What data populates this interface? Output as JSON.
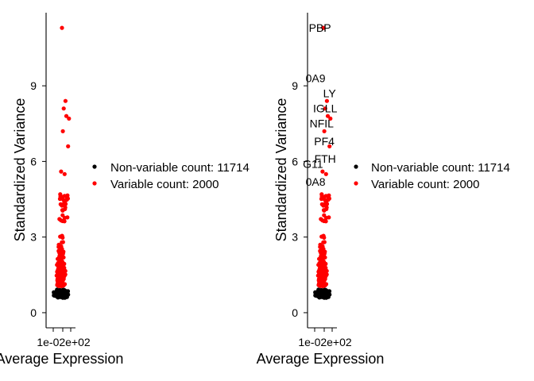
{
  "colors": {
    "non_variable": "#000000",
    "variable": "#ff0000"
  },
  "chart_data": [
    {
      "type": "scatter",
      "xlabel": "Average Expression",
      "ylabel": "Standardized Variance",
      "xtick_label": "1e-02e+02",
      "y_ticks": [
        0,
        3,
        6,
        9
      ],
      "ylim": [
        -0.6,
        11.9
      ],
      "legend": [
        {
          "name": "Non-variable count: 11714",
          "color": "#000000"
        },
        {
          "name": "Variable count: 2000",
          "color": "#ff0000"
        }
      ],
      "highlight_points": [
        {
          "x": 0.5,
          "y": 11.3
        },
        {
          "x": 0.7,
          "y": 8.4
        },
        {
          "x": 0.6,
          "y": 8.1
        },
        {
          "x": 0.75,
          "y": 7.8
        },
        {
          "x": 0.9,
          "y": 7.7
        },
        {
          "x": 0.55,
          "y": 7.2
        },
        {
          "x": 0.85,
          "y": 6.6
        },
        {
          "x": 0.45,
          "y": 5.6
        },
        {
          "x": 0.65,
          "y": 5.5
        },
        {
          "x": 0.4,
          "y": 4.7
        }
      ],
      "labels": []
    },
    {
      "type": "scatter",
      "xlabel": "Average Expression",
      "ylabel": "Standardized Variance",
      "xtick_label": "1e-02e+02",
      "y_ticks": [
        0,
        3,
        6,
        9
      ],
      "ylim": [
        -0.6,
        11.9
      ],
      "legend": [
        {
          "name": "Non-variable count: 11714",
          "color": "#000000"
        },
        {
          "name": "Variable count: 2000",
          "color": "#ff0000"
        }
      ],
      "highlight_points": [
        {
          "x": 0.5,
          "y": 11.3
        },
        {
          "x": 0.7,
          "y": 8.4
        },
        {
          "x": 0.6,
          "y": 8.1
        },
        {
          "x": 0.75,
          "y": 7.8
        },
        {
          "x": 0.9,
          "y": 7.7
        },
        {
          "x": 0.55,
          "y": 7.2
        },
        {
          "x": 0.85,
          "y": 6.6
        },
        {
          "x": 0.45,
          "y": 5.6
        },
        {
          "x": 0.65,
          "y": 5.5
        },
        {
          "x": 0.4,
          "y": 4.7
        }
      ],
      "labels": [
        {
          "text": "PBP",
          "x": 0.3,
          "y": 11.3
        },
        {
          "text": "0A9",
          "x": 0.05,
          "y": 9.3
        },
        {
          "text": "LY",
          "x": 0.85,
          "y": 8.7
        },
        {
          "text": "IGLL",
          "x": 0.6,
          "y": 8.1
        },
        {
          "text": "NFIL",
          "x": 0.4,
          "y": 7.5
        },
        {
          "text": "PF4",
          "x": 0.55,
          "y": 6.8
        },
        {
          "text": "FTH",
          "x": 0.6,
          "y": 6.1
        },
        {
          "text": "G11",
          "x": -0.1,
          "y": 5.9
        },
        {
          "text": "0A8",
          "x": 0.05,
          "y": 5.2
        }
      ]
    }
  ]
}
